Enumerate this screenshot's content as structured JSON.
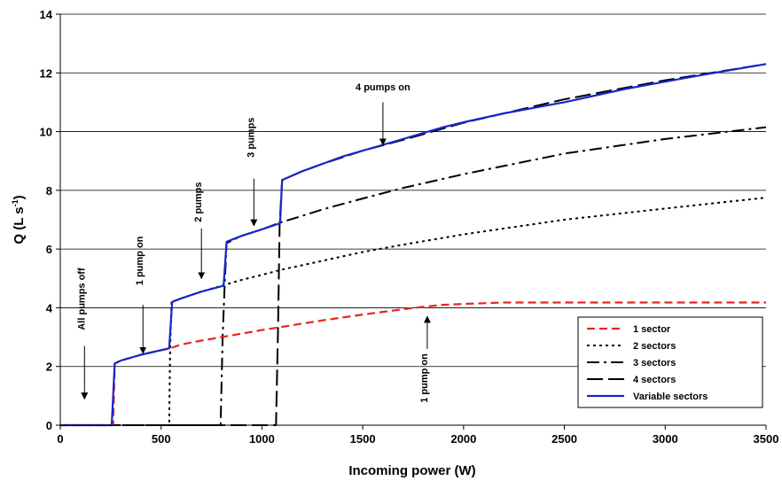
{
  "chart_data": {
    "type": "line",
    "xlabel": "Incoming power (W)",
    "ylabel_main": "Q (L s",
    "ylabel_sup": "-1",
    "ylabel_close": ")",
    "xlim": [
      0,
      3500
    ],
    "ylim": [
      0,
      14
    ],
    "xticks": [
      0,
      500,
      1000,
      1500,
      2000,
      2500,
      3000,
      3500
    ],
    "yticks": [
      0,
      2,
      4,
      6,
      8,
      10,
      12,
      14
    ],
    "grid": "horizontal",
    "legend_position": "bottom-right",
    "series": [
      {
        "name": "1 sector",
        "color": "#e8251f",
        "dash": "dashed",
        "points": [
          [
            0,
            0
          ],
          [
            262,
            0
          ],
          [
            270,
            2.1
          ],
          [
            300,
            2.2
          ],
          [
            400,
            2.4
          ],
          [
            545,
            2.62
          ],
          [
            600,
            2.75
          ],
          [
            700,
            2.88
          ],
          [
            800,
            3.0
          ],
          [
            900,
            3.12
          ],
          [
            1000,
            3.24
          ],
          [
            1100,
            3.35
          ],
          [
            1200,
            3.46
          ],
          [
            1300,
            3.57
          ],
          [
            1400,
            3.67
          ],
          [
            1500,
            3.77
          ],
          [
            1600,
            3.86
          ],
          [
            1700,
            3.95
          ],
          [
            1800,
            4.03
          ],
          [
            1900,
            4.1
          ],
          [
            2000,
            4.13
          ],
          [
            2200,
            4.18
          ],
          [
            2500,
            4.18
          ],
          [
            3000,
            4.18
          ],
          [
            3500,
            4.18
          ]
        ]
      },
      {
        "name": "2 sectors",
        "color": "#000000",
        "dash": "dotted",
        "points": [
          [
            0,
            0
          ],
          [
            540,
            0
          ],
          [
            545,
            2.62
          ],
          [
            552,
            4.2
          ],
          [
            600,
            4.32
          ],
          [
            700,
            4.55
          ],
          [
            800,
            4.75
          ],
          [
            900,
            4.95
          ],
          [
            1000,
            5.12
          ],
          [
            1100,
            5.3
          ],
          [
            1200,
            5.45
          ],
          [
            1300,
            5.6
          ],
          [
            1500,
            5.9
          ],
          [
            1700,
            6.15
          ],
          [
            2000,
            6.5
          ],
          [
            2500,
            7.0
          ],
          [
            3000,
            7.38
          ],
          [
            3500,
            7.75
          ]
        ]
      },
      {
        "name": "3 sectors",
        "color": "#000000",
        "dash": "dashdot",
        "points": [
          [
            0,
            0
          ],
          [
            795,
            0
          ],
          [
            805,
            2.98
          ],
          [
            815,
            4.78
          ],
          [
            825,
            6.2
          ],
          [
            900,
            6.45
          ],
          [
            1000,
            6.67
          ],
          [
            1090,
            6.9
          ],
          [
            1200,
            7.13
          ],
          [
            1300,
            7.35
          ],
          [
            1500,
            7.72
          ],
          [
            1700,
            8.08
          ],
          [
            2000,
            8.55
          ],
          [
            2500,
            9.25
          ],
          [
            3000,
            9.75
          ],
          [
            3500,
            10.15
          ]
        ]
      },
      {
        "name": "4 sectors",
        "color": "#000000",
        "dash": "longdash",
        "points": [
          [
            0,
            0
          ],
          [
            1070,
            0
          ],
          [
            1080,
            3.3
          ],
          [
            1088,
            6.85
          ],
          [
            1100,
            8.35
          ],
          [
            1200,
            8.65
          ],
          [
            1300,
            8.9
          ],
          [
            1500,
            9.35
          ],
          [
            1700,
            9.72
          ],
          [
            2000,
            10.3
          ],
          [
            2500,
            11.1
          ],
          [
            3000,
            11.75
          ],
          [
            3500,
            12.3
          ]
        ]
      },
      {
        "name": "Variable sectors",
        "color": "#1727c9",
        "dash": "solid",
        "points": [
          [
            0,
            0
          ],
          [
            255,
            0
          ],
          [
            270,
            2.1
          ],
          [
            300,
            2.2
          ],
          [
            400,
            2.4
          ],
          [
            540,
            2.62
          ],
          [
            555,
            4.2
          ],
          [
            600,
            4.32
          ],
          [
            700,
            4.55
          ],
          [
            810,
            4.75
          ],
          [
            825,
            6.25
          ],
          [
            900,
            6.45
          ],
          [
            1000,
            6.67
          ],
          [
            1090,
            6.88
          ],
          [
            1100,
            8.35
          ],
          [
            1200,
            8.65
          ],
          [
            1300,
            8.9
          ],
          [
            1400,
            9.15
          ],
          [
            1500,
            9.35
          ],
          [
            1600,
            9.55
          ],
          [
            1700,
            9.75
          ],
          [
            1800,
            9.95
          ],
          [
            1900,
            10.15
          ],
          [
            2000,
            10.32
          ],
          [
            2200,
            10.62
          ],
          [
            2500,
            11.0
          ],
          [
            2800,
            11.45
          ],
          [
            3000,
            11.7
          ],
          [
            3200,
            11.95
          ],
          [
            3500,
            12.3
          ]
        ]
      }
    ],
    "annotations": [
      {
        "text": "All pumps off",
        "x": 120,
        "y": 4.3,
        "rotate": -90,
        "arrow_from": [
          120,
          2.7
        ],
        "arrow_to": [
          120,
          0.9
        ]
      },
      {
        "text": "1 pump on",
        "x": 410,
        "y": 5.6,
        "rotate": -90,
        "arrow_from": [
          410,
          4.1
        ],
        "arrow_to": [
          410,
          2.45
        ]
      },
      {
        "text": "2 pumps",
        "x": 700,
        "y": 7.6,
        "rotate": -90,
        "arrow_from": [
          700,
          6.7
        ],
        "arrow_to": [
          700,
          5.0
        ]
      },
      {
        "text": "3 pumps",
        "x": 960,
        "y": 9.8,
        "rotate": -90,
        "arrow_from": [
          960,
          8.4
        ],
        "arrow_to": [
          960,
          6.8
        ]
      },
      {
        "text": "4 pumps on",
        "x": 1600,
        "y": 11.4,
        "rotate": 0,
        "arrow_from": [
          1600,
          11.0
        ],
        "arrow_to": [
          1600,
          9.55
        ]
      },
      {
        "text": "1 pump on",
        "x": 1820,
        "y": 1.6,
        "rotate": -90,
        "arrow_from": [
          1820,
          2.6
        ],
        "arrow_to": [
          1820,
          3.7
        ]
      }
    ]
  }
}
